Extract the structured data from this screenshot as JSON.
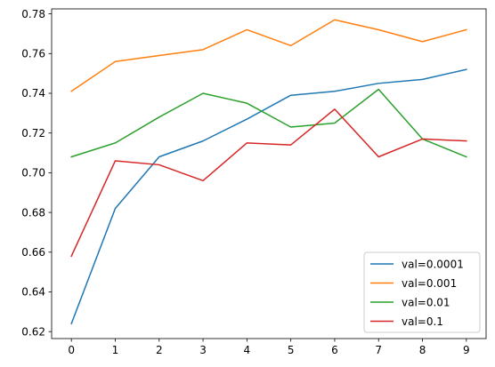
{
  "chart_data": {
    "type": "line",
    "title": "",
    "xlabel": "",
    "ylabel": "",
    "x": [
      0,
      1,
      2,
      3,
      4,
      5,
      6,
      7,
      8,
      9
    ],
    "xlim": [
      -0.45,
      9.45
    ],
    "ylim": [
      0.6165,
      0.7825
    ],
    "xticks": [
      "0",
      "1",
      "2",
      "3",
      "4",
      "5",
      "6",
      "7",
      "8",
      "9"
    ],
    "yticks": [
      0.62,
      0.64,
      0.66,
      0.68,
      0.7,
      0.72,
      0.74,
      0.76,
      0.78
    ],
    "ytick_labels": [
      "0.62",
      "0.64",
      "0.66",
      "0.68",
      "0.70",
      "0.72",
      "0.74",
      "0.76",
      "0.78"
    ],
    "grid": false,
    "legend_position": "lower-right",
    "series": [
      {
        "name": "val=0.0001",
        "color": "#1f77b4",
        "values": [
          0.624,
          0.682,
          0.708,
          0.716,
          0.727,
          0.739,
          0.741,
          0.745,
          0.747,
          0.752
        ]
      },
      {
        "name": "val=0.001",
        "color": "#ff7f0e",
        "values": [
          0.741,
          0.756,
          0.759,
          0.762,
          0.772,
          0.764,
          0.777,
          0.772,
          0.766,
          0.772
        ]
      },
      {
        "name": "val=0.01",
        "color": "#2ca02c",
        "values": [
          0.708,
          0.715,
          0.728,
          0.74,
          0.735,
          0.723,
          0.725,
          0.742,
          0.717,
          0.708
        ]
      },
      {
        "name": "val=0.1",
        "color": "#d62728",
        "values": [
          0.658,
          0.706,
          0.704,
          0.696,
          0.715,
          0.714,
          0.732,
          0.708,
          0.717,
          0.716
        ]
      }
    ]
  }
}
